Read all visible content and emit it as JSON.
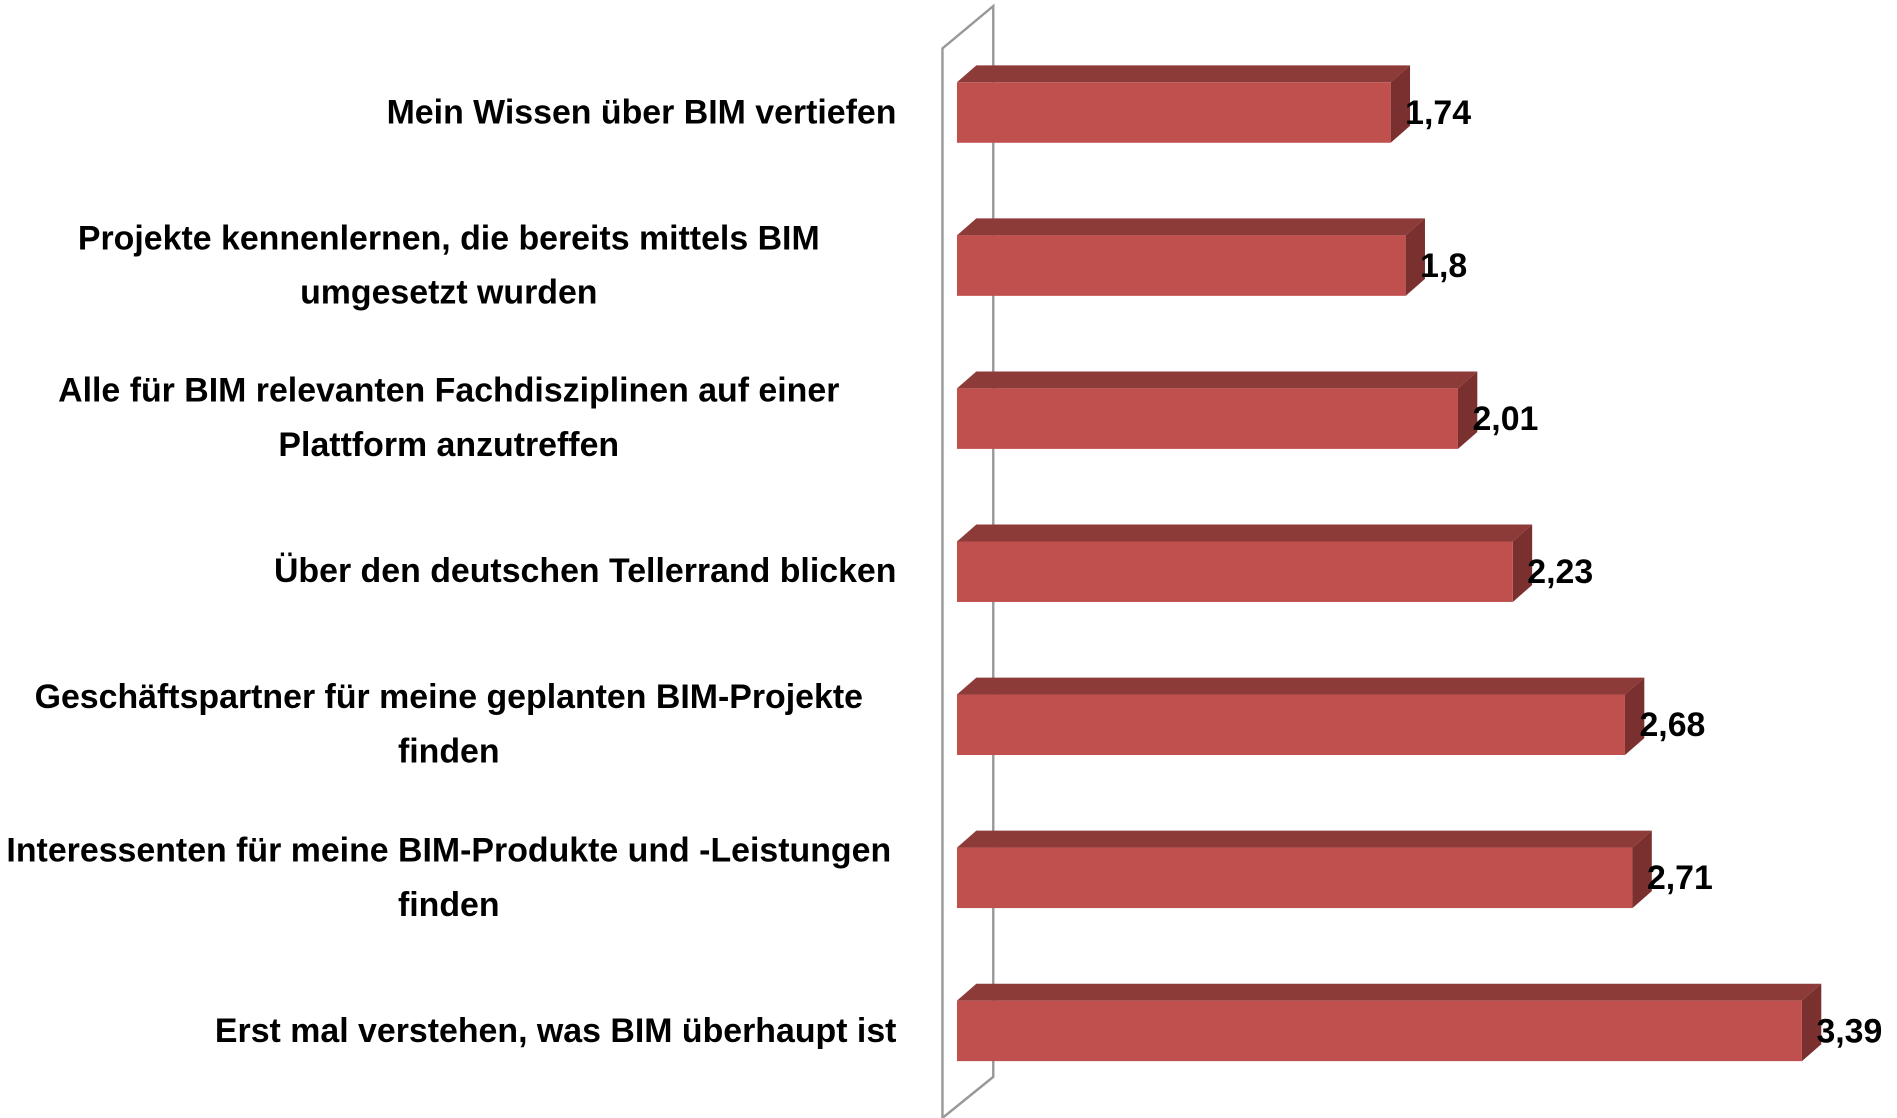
{
  "chart_data": {
    "type": "bar",
    "orientation": "horizontal",
    "categories": [
      "Mein Wissen über BIM vertiefen",
      "Projekte kennenlernen, die bereits mittels BIM umgesetzt wurden",
      "Alle für BIM relevanten Fachdisziplinen auf einer Plattform anzutreffen",
      "Über den deutschen Tellerrand blicken",
      "Geschäftspartner für meine geplanten BIM-Projekte finden",
      "Interessenten für meine BIM-Produkte und -Leistungen finden",
      "Erst mal verstehen, was BIM überhaupt ist"
    ],
    "values": [
      1.74,
      1.8,
      2.01,
      2.23,
      2.68,
      2.71,
      3.39
    ],
    "value_labels": [
      "1,74",
      "1,8",
      "2,01",
      "2,23",
      "2,68",
      "2,71",
      "3,39"
    ],
    "color": "#c0504d",
    "xlim": [
      0,
      3.5
    ]
  }
}
